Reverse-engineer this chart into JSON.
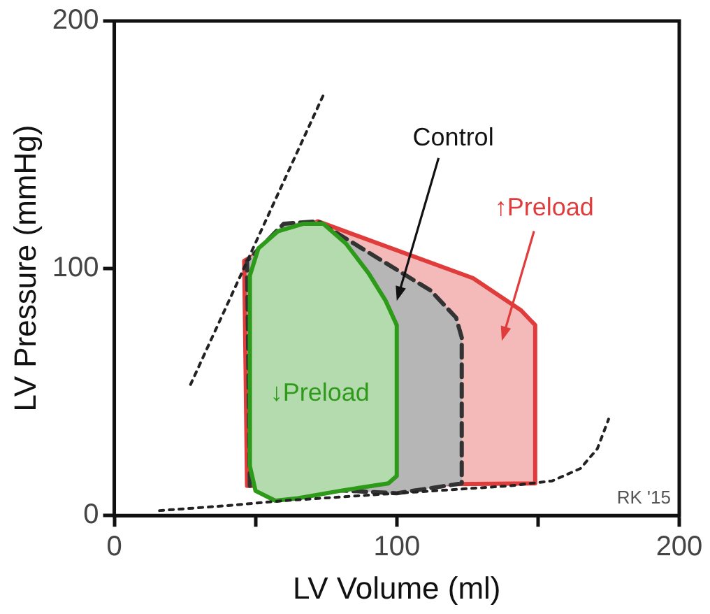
{
  "chart_data": {
    "type": "area",
    "xlabel": "LV Volume (ml)",
    "ylabel": "LV Pressure (mmHg)",
    "xlim": [
      0,
      200
    ],
    "ylim": [
      0,
      200
    ],
    "xticks": [
      0,
      {
        "value": 50,
        "label": null
      },
      100,
      {
        "value": 150,
        "label": null
      },
      200
    ],
    "yticks": [
      0,
      100,
      200
    ],
    "grid": false,
    "legend": false,
    "marker": "none",
    "series": [
      {
        "color": "#e03c3c",
        "line_style": "solid",
        "x": [
          47,
          46,
          72,
          127,
          144,
          149,
          149
        ],
        "values": [
          12,
          103,
          119,
          96,
          83,
          77,
          13
        ]
      },
      {
        "color": "#333333",
        "line_style": "dashed",
        "x": [
          48,
          47,
          60,
          72,
          112,
          121,
          123,
          123,
          100
        ],
        "values": [
          12,
          103,
          118,
          119,
          91,
          80,
          72,
          13,
          9
        ]
      },
      {
        "color": "#2e9a1a",
        "line_style": "solid",
        "x": [
          57,
          50,
          48,
          48,
          51,
          58,
          67,
          74,
          82,
          90,
          96,
          100,
          100,
          97,
          80,
          65
        ],
        "values": [
          6,
          10,
          20,
          97,
          108,
          115,
          118,
          118,
          110,
          98,
          87,
          77,
          16,
          13,
          10,
          7
        ]
      },
      {
        "type": "line",
        "color": "#222222",
        "line_style": "dotted",
        "x": [
          27,
          74
        ],
        "values": [
          53,
          170
        ]
      },
      {
        "type": "line",
        "color": "#222222",
        "line_style": "dotted",
        "x": [
          16,
          40,
          60,
          100,
          140,
          155,
          165,
          171,
          175
        ],
        "values": [
          2,
          4,
          6,
          9,
          12,
          14,
          19,
          27,
          39
        ]
      }
    ],
    "annotations": [
      "Control",
      "↑Preload",
      "↓Preload",
      "RK '15"
    ]
  }
}
